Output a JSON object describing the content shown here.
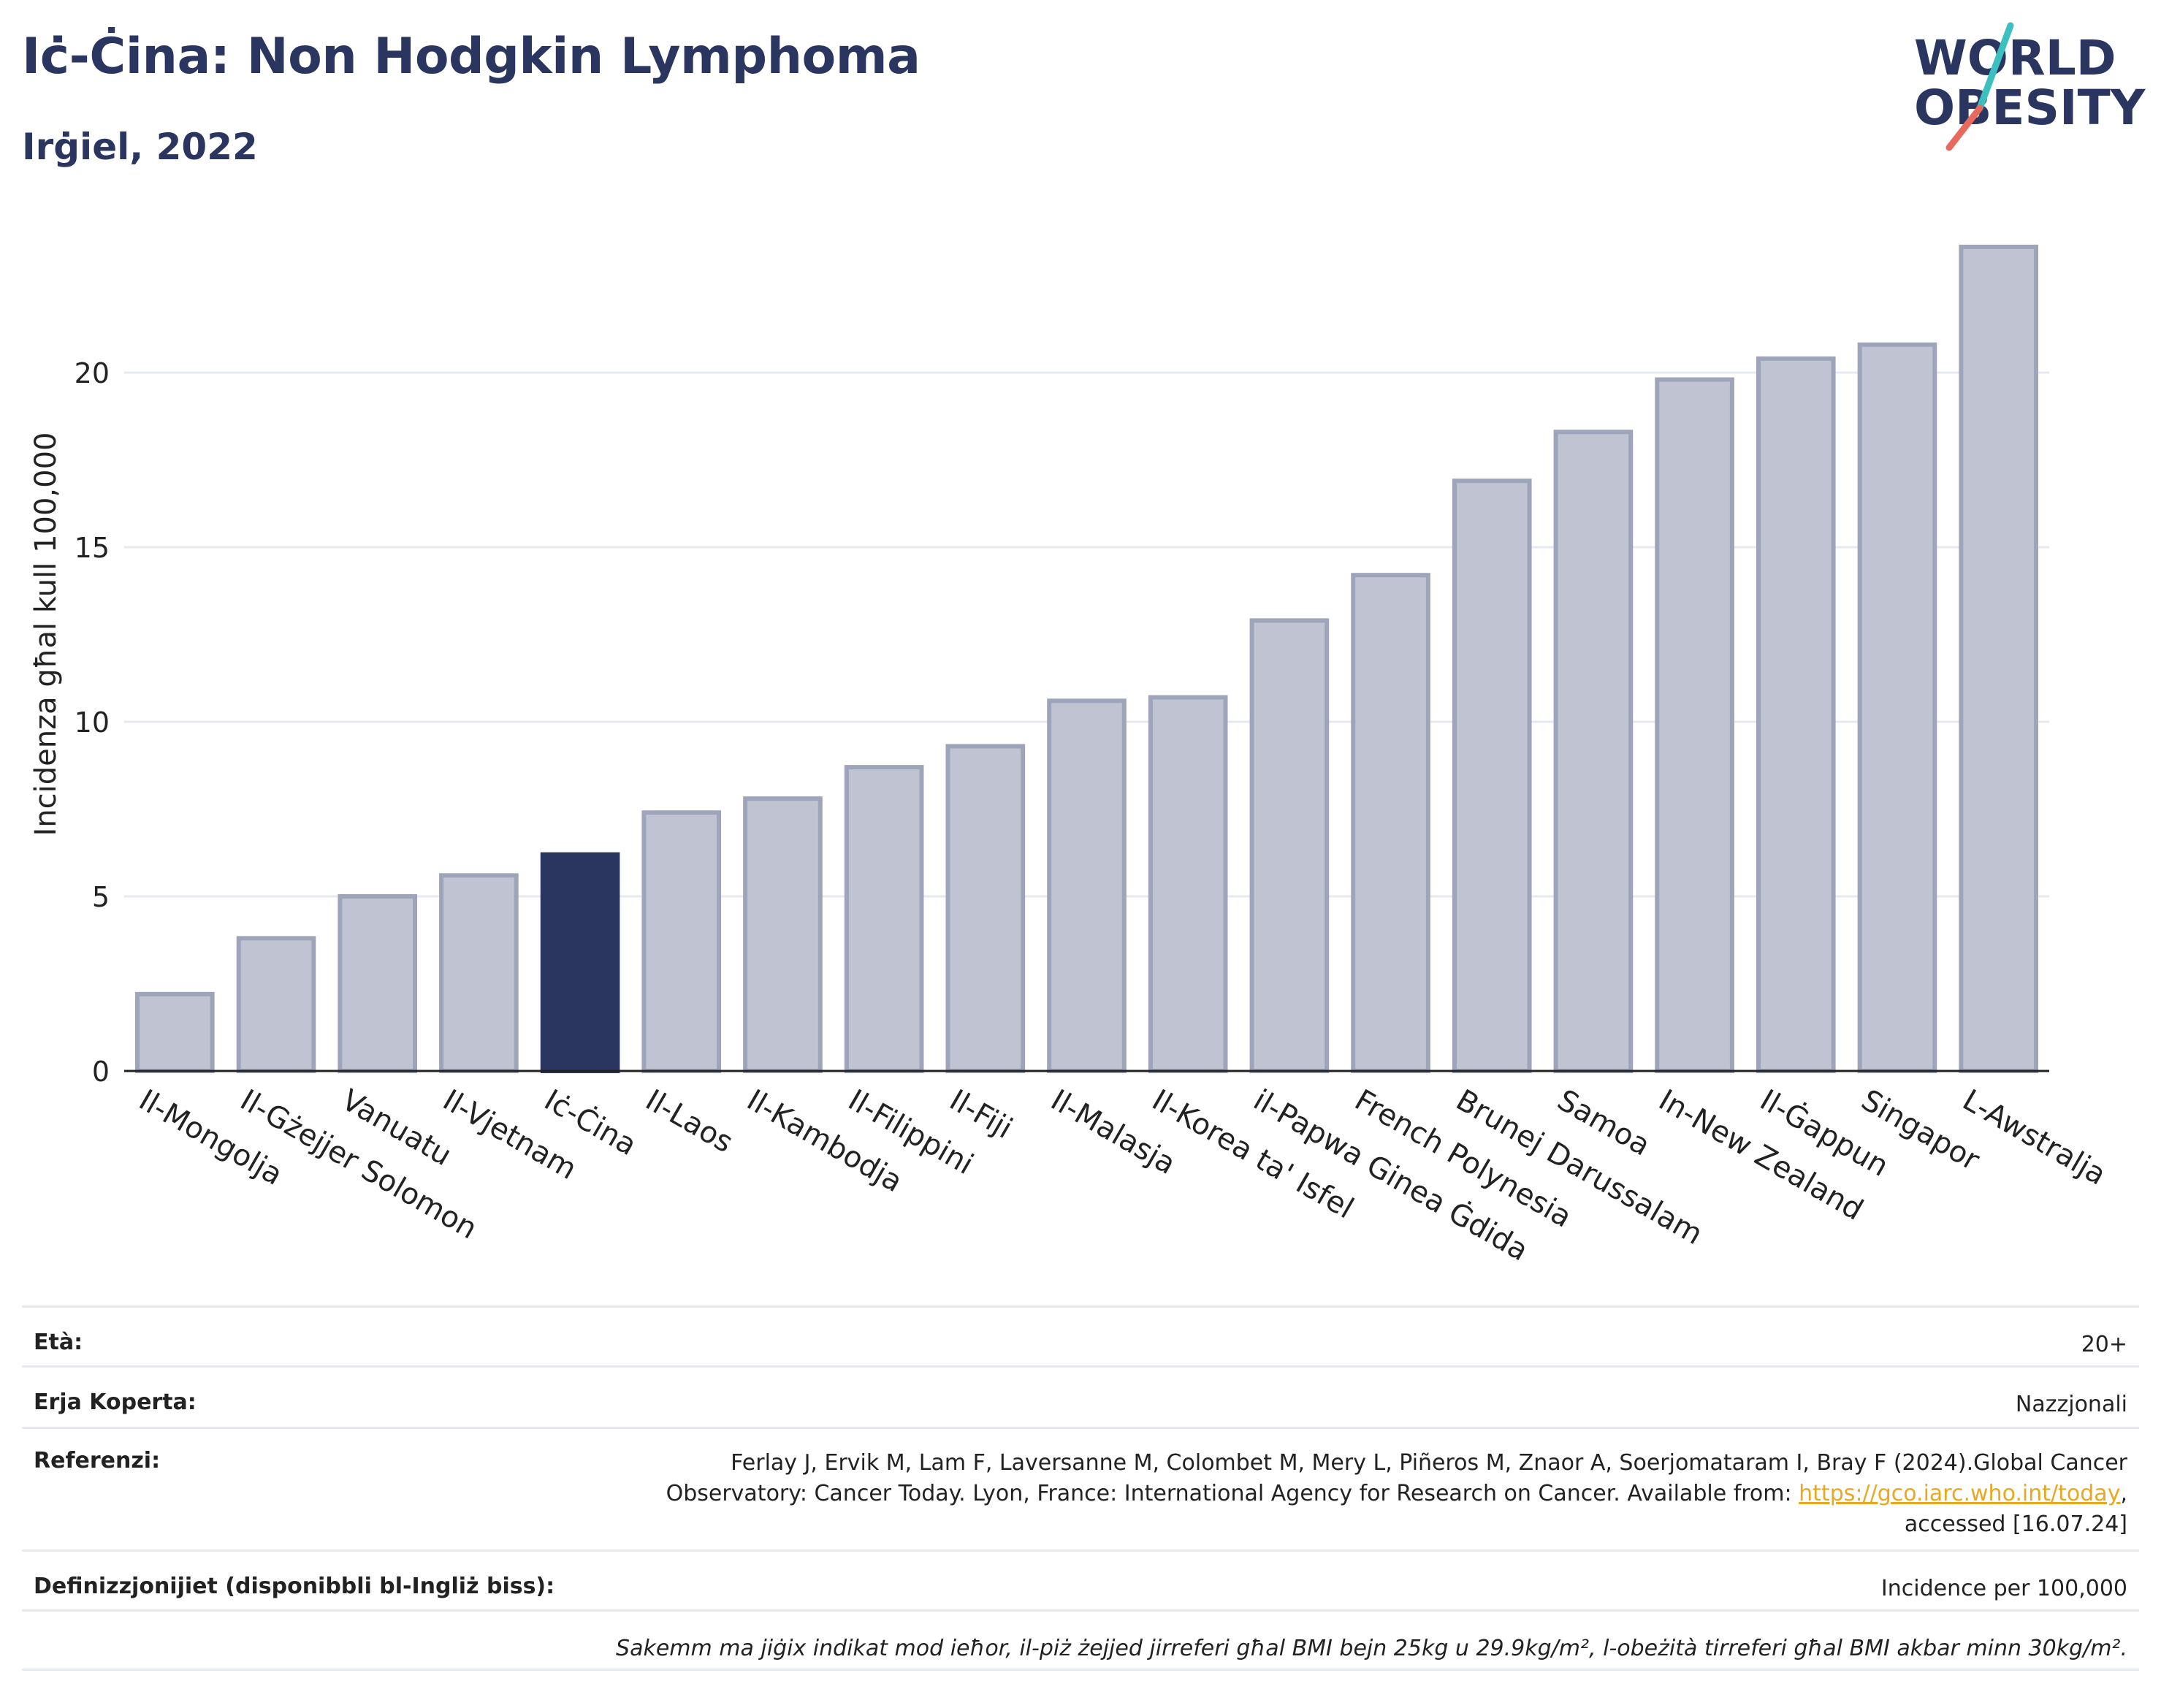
{
  "header": {
    "title": "Iċ-Ċina: Non Hodgkin Lymphoma",
    "subtitle": "Irġiel, 2022"
  },
  "logo": {
    "line1": "WORLD",
    "line2": "OBESITY",
    "colors": {
      "text": "#2a3560",
      "slash_top": "#3bbfbf",
      "slash_bottom": "#e86a5c"
    }
  },
  "chart_data": {
    "type": "bar",
    "title": "Iċ-Ċina: Non Hodgkin Lymphoma",
    "subtitle": "Irġiel, 2022",
    "xlabel": "",
    "ylabel": "Incidenza għal kull 100,000",
    "ylim": [
      0,
      24
    ],
    "yticks": [
      0,
      5,
      10,
      15,
      20
    ],
    "grid": true,
    "categories": [
      "Il-Mongolja",
      "Il-Gżejjer Solomon",
      "Vanuatu",
      "Il-Vjetnam",
      "Iċ-Ċina",
      "Il-Laos",
      "Il-Kambodja",
      "Il-Filippini",
      "Il-Fiji",
      "Il-Malasja",
      "Il-Korea ta' Isfel",
      "il-Papwa Ginea Ġdida",
      "French Polynesia",
      "Brunej Darussalam",
      "Samoa",
      "In-New Zealand",
      "Il-Ġappun",
      "Singapor",
      "L-Awstralja"
    ],
    "values": [
      2.2,
      3.8,
      5.0,
      5.6,
      6.2,
      7.4,
      7.8,
      8.7,
      9.3,
      10.6,
      10.7,
      12.9,
      14.2,
      16.9,
      18.3,
      19.8,
      20.4,
      20.8,
      23.6
    ],
    "highlight": "Iċ-Ċina",
    "colors": {
      "bar": "#c0c4d2",
      "bar_border": "#9ea5bb",
      "highlight": "#2a3560",
      "grid": "#e6e9f0",
      "axis": "#222222"
    }
  },
  "info": {
    "age_label": "Età:",
    "age_value": "20+",
    "area_label": "Erja Koperta:",
    "area_value": "Nazzjonali",
    "ref_label": "Referenzi:",
    "ref_line1": "Ferlay J, Ervik M, Lam F, Laversanne M, Colombet M, Mery L, Piñeros M, Znaor A, Soerjomataram I, Bray F (2024).Global Cancer",
    "ref_line2_pre": "Observatory: Cancer Today. Lyon, France: International Agency for Research on Cancer. Available from: ",
    "ref_link": "https://gco.iarc.who.int/today",
    "ref_line2_post": ",",
    "ref_line3": "accessed [16.07.24]",
    "def_label": "Definizzjonijiet (disponibbli bl-Ingliż biss):",
    "def_value": "Incidence per 100,000",
    "note": "Sakemm ma jiġix indikat mod ieħor, il-piż żejjed jirreferi għal BMI bejn 25kg u 29.9kg/m², l-obeżità tirreferi għal BMI akbar minn 30kg/m²."
  }
}
